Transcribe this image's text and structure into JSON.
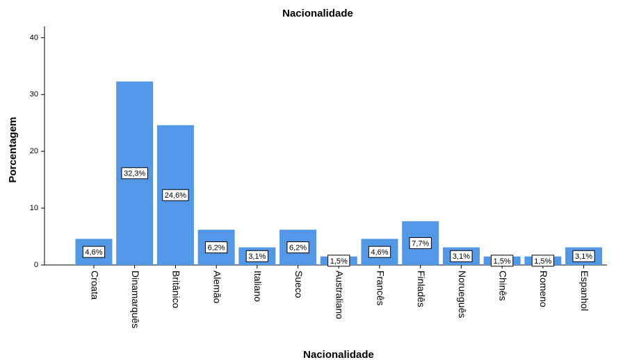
{
  "chart_data": {
    "type": "bar",
    "title": "Nacionalidade",
    "x_label": "Nacionalidade",
    "y_label": "Porcentagem",
    "categories": [
      "Croata",
      "Dinamarquês",
      "Britânico",
      "Alemão",
      "Italiano",
      "Sueco",
      "Australiano",
      "Francês",
      "Finladês",
      "Norueguês",
      "Chinês",
      "Romeno",
      "Espanhol"
    ],
    "values": [
      4.6,
      32.3,
      24.6,
      6.2,
      3.1,
      6.2,
      1.5,
      4.6,
      7.7,
      3.1,
      1.5,
      1.5,
      3.1
    ],
    "value_labels": [
      "4,6%",
      "32,3%",
      "24,6%",
      "6,2%",
      "3,1%",
      "6,2%",
      "1,5%",
      "4,6%",
      "7,7%",
      "3,1%",
      "1,5%",
      "1,5%",
      "3,1%"
    ],
    "color": "#5398e6",
    "ylim": [
      0,
      42
    ],
    "yticks": [
      0,
      10,
      20,
      30,
      40
    ],
    "grid": false
  }
}
